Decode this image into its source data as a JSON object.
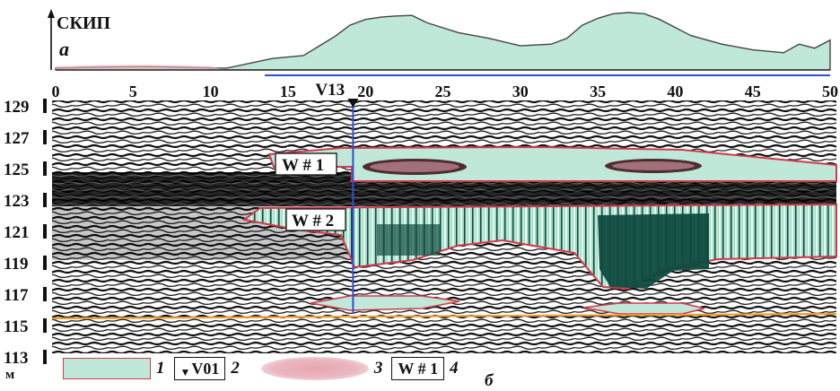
{
  "top_panel": {
    "axis_label": "СКИП",
    "panel_letter": "а",
    "unit": "м",
    "x_ticks": [
      "0",
      "5",
      "10",
      "15",
      "20",
      "25",
      "30",
      "35",
      "40",
      "45",
      "50"
    ],
    "profile_x": [
      0,
      3,
      6,
      9,
      11,
      14,
      16,
      18,
      19,
      20,
      21,
      22,
      23,
      24,
      26,
      28,
      30,
      32,
      33,
      34,
      35,
      36,
      37,
      38,
      39,
      41,
      43,
      45,
      47,
      48,
      49,
      50
    ],
    "profile_y": [
      0.03,
      0.05,
      0.06,
      0.04,
      0.03,
      0.2,
      0.25,
      0.58,
      0.78,
      0.88,
      0.92,
      0.94,
      0.95,
      0.82,
      0.65,
      0.55,
      0.42,
      0.45,
      0.55,
      0.78,
      0.9,
      0.98,
      1.0,
      0.98,
      0.88,
      0.6,
      0.45,
      0.35,
      0.3,
      0.45,
      0.38,
      0.52
    ],
    "baseline_y": 0.12,
    "blue_line_start_x": 13.5
  },
  "radargram": {
    "depth_unit": "м",
    "depth_ticks": [
      "129",
      "127",
      "125",
      "123",
      "121",
      "119",
      "117",
      "115",
      "113"
    ],
    "marker_label": "V13",
    "marker_x": 19.2,
    "water_labels": [
      "W # 1",
      "W # 2"
    ],
    "panel_letter": "б"
  },
  "legend": {
    "items": [
      {
        "type": "green-zone",
        "number": "1"
      },
      {
        "type": "marker",
        "text": "V01",
        "number": "2"
      },
      {
        "type": "pink-zone",
        "number": "3"
      },
      {
        "type": "label-box",
        "text": "W # 1",
        "number": "4"
      }
    ]
  },
  "colors": {
    "zone_fill": "#bfe8d9",
    "zone_dark": "#0f4a3e",
    "zone_border": "#d23a4a",
    "pink": "#e8aab6",
    "blue_line": "#2f4fd6",
    "orange_line": "#f0a030"
  }
}
